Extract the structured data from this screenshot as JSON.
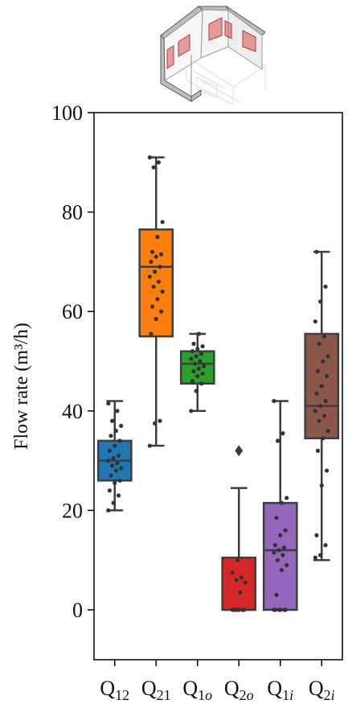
{
  "chart_data": {
    "type": "box",
    "ylabel": "Flow rate (m³/h)",
    "ylim": [
      -10,
      100
    ],
    "yticks": [
      0,
      20,
      40,
      60,
      80,
      100
    ],
    "grid": false,
    "legend": "none",
    "categories": [
      {
        "base": "Q",
        "sub": "12",
        "sub_italic": "",
        "color": "#1f77b4"
      },
      {
        "base": "Q",
        "sub": "21",
        "sub_italic": "",
        "color": "#ff7f0e"
      },
      {
        "base": "Q",
        "sub": "1",
        "sub_italic": "o",
        "color": "#2ca02c"
      },
      {
        "base": "Q",
        "sub": "2",
        "sub_italic": "o",
        "color": "#d62728"
      },
      {
        "base": "Q",
        "sub": "1",
        "sub_italic": "i",
        "color": "#9467bd"
      },
      {
        "base": "Q",
        "sub": "2",
        "sub_italic": "i",
        "color": "#8c564b"
      }
    ],
    "boxes": [
      {
        "whislo": 20,
        "q1": 26,
        "med": 30,
        "q3": 34,
        "whishi": 42,
        "fliers": []
      },
      {
        "whislo": 33,
        "q1": 55,
        "med": 69,
        "q3": 76.5,
        "whishi": 91,
        "fliers": []
      },
      {
        "whislo": 40,
        "q1": 45.5,
        "med": 49.5,
        "q3": 52,
        "whishi": 55.5,
        "fliers": []
      },
      {
        "whislo": 0,
        "q1": 0,
        "med": 0,
        "q3": 10.5,
        "whishi": 24.5,
        "fliers": [
          32
        ]
      },
      {
        "whislo": 0,
        "q1": 0,
        "med": 12,
        "q3": 21.5,
        "whishi": 42,
        "fliers": []
      },
      {
        "whislo": 10,
        "q1": 34.5,
        "med": 41,
        "q3": 55.5,
        "whishi": 72,
        "fliers": []
      }
    ],
    "points": [
      [
        20,
        21.5,
        23,
        24,
        25.5,
        26,
        27,
        28,
        28.5,
        29,
        29.5,
        30,
        30.5,
        31,
        32,
        33,
        34,
        35,
        36,
        37,
        38,
        40,
        41.5
      ],
      [
        33,
        37.5,
        38,
        55.5,
        58.5,
        60,
        61,
        62.5,
        64,
        65,
        66,
        67,
        68,
        69,
        70,
        71,
        71.5,
        72,
        75,
        78,
        89,
        90,
        91
      ],
      [
        40,
        44,
        45.5,
        46,
        47,
        47.5,
        48,
        48.5,
        49,
        49.5,
        50,
        50.5,
        51,
        51.5,
        52,
        52.5,
        53,
        53.5,
        55.5
      ],
      [
        0,
        0,
        0,
        0,
        0,
        0,
        0,
        3.5,
        5.5,
        6,
        6.5,
        7.5,
        10
      ],
      [
        0,
        0,
        0,
        0,
        0,
        0,
        3,
        8,
        9,
        10,
        11,
        11.5,
        12,
        12.5,
        13,
        15,
        16,
        18.5,
        21.5,
        22.5,
        34,
        35.5,
        42
      ],
      [
        10.5,
        11,
        13,
        15,
        25,
        28,
        32,
        34.5,
        36,
        38,
        39,
        40,
        41,
        42,
        43.5,
        45,
        47,
        48,
        50,
        51,
        53.5,
        55,
        58,
        62,
        65,
        72
      ]
    ]
  },
  "illustration": {
    "name": "room-thumbnail",
    "panel_color": "#d9534f"
  }
}
